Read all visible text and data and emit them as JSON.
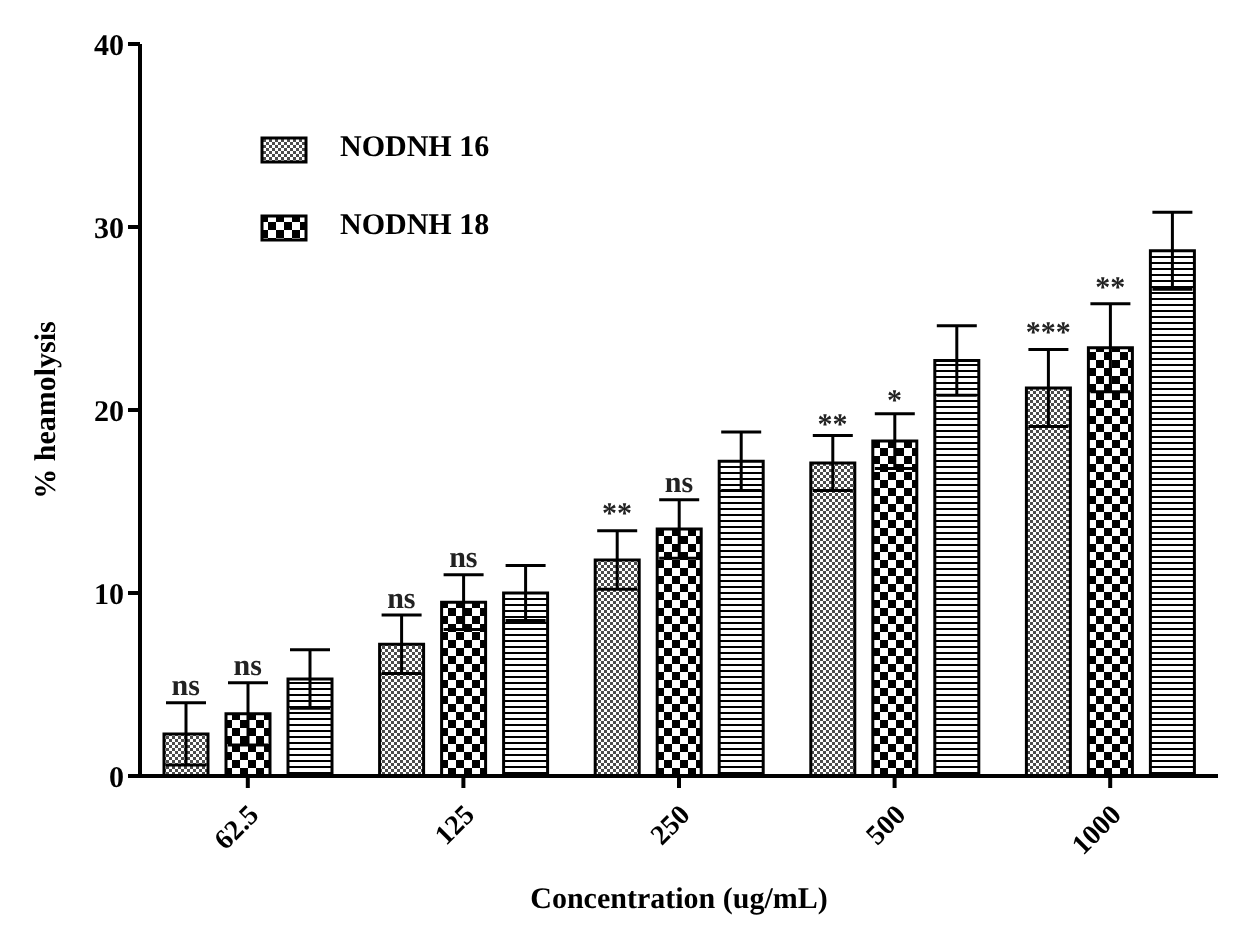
{
  "chart_data": {
    "type": "bar",
    "xlabel": "Concentration (ug/mL)",
    "ylabel": "% heamolysis",
    "categories": [
      "62.5",
      "125",
      "250",
      "500",
      "1000"
    ],
    "series": [
      {
        "name": "NODNH 16",
        "color": "#000000",
        "values": [
          2.3,
          7.2,
          11.8,
          17.1,
          21.2
        ],
        "errors": [
          1.7,
          1.6,
          1.6,
          1.5,
          2.1
        ]
      },
      {
        "name": "NODNH 18",
        "color": "#000000",
        "values": [
          3.4,
          9.5,
          13.5,
          18.3,
          23.4
        ],
        "errors": [
          1.7,
          1.5,
          1.6,
          1.5,
          2.4
        ]
      },
      {
        "color": "#000000",
        "values": [
          5.3,
          10,
          17.2,
          22.7,
          28.7
        ],
        "errors": [
          1.6,
          1.5,
          1.6,
          1.9,
          2.1
        ]
      }
    ],
    "ylim": [
      0,
      40
    ],
    "yticks": [
      0,
      10,
      20,
      30,
      40
    ],
    "grid": false,
    "legend": "top left",
    "annotations": [
      {
        "text": "ns",
        "x": "62.5",
        "y": 4.4
      },
      {
        "text": "ns",
        "x": "62.5",
        "y": 5.5
      },
      {
        "text": "ns",
        "x": "125",
        "y": 9.2
      },
      {
        "text": "ns",
        "x": "125",
        "y": 11.4
      },
      {
        "text": "**",
        "x": "250",
        "y": 13.8
      },
      {
        "text": "ns",
        "x": "250",
        "y": 15.5
      },
      {
        "text": "**",
        "x": "500",
        "y": 18.7
      },
      {
        "text": "*",
        "x": "500",
        "y": 20.0
      },
      {
        "text": "***",
        "x": "1000",
        "y": 23.7
      },
      {
        "text": "**",
        "x": "1000",
        "y": 26.2
      }
    ]
  }
}
